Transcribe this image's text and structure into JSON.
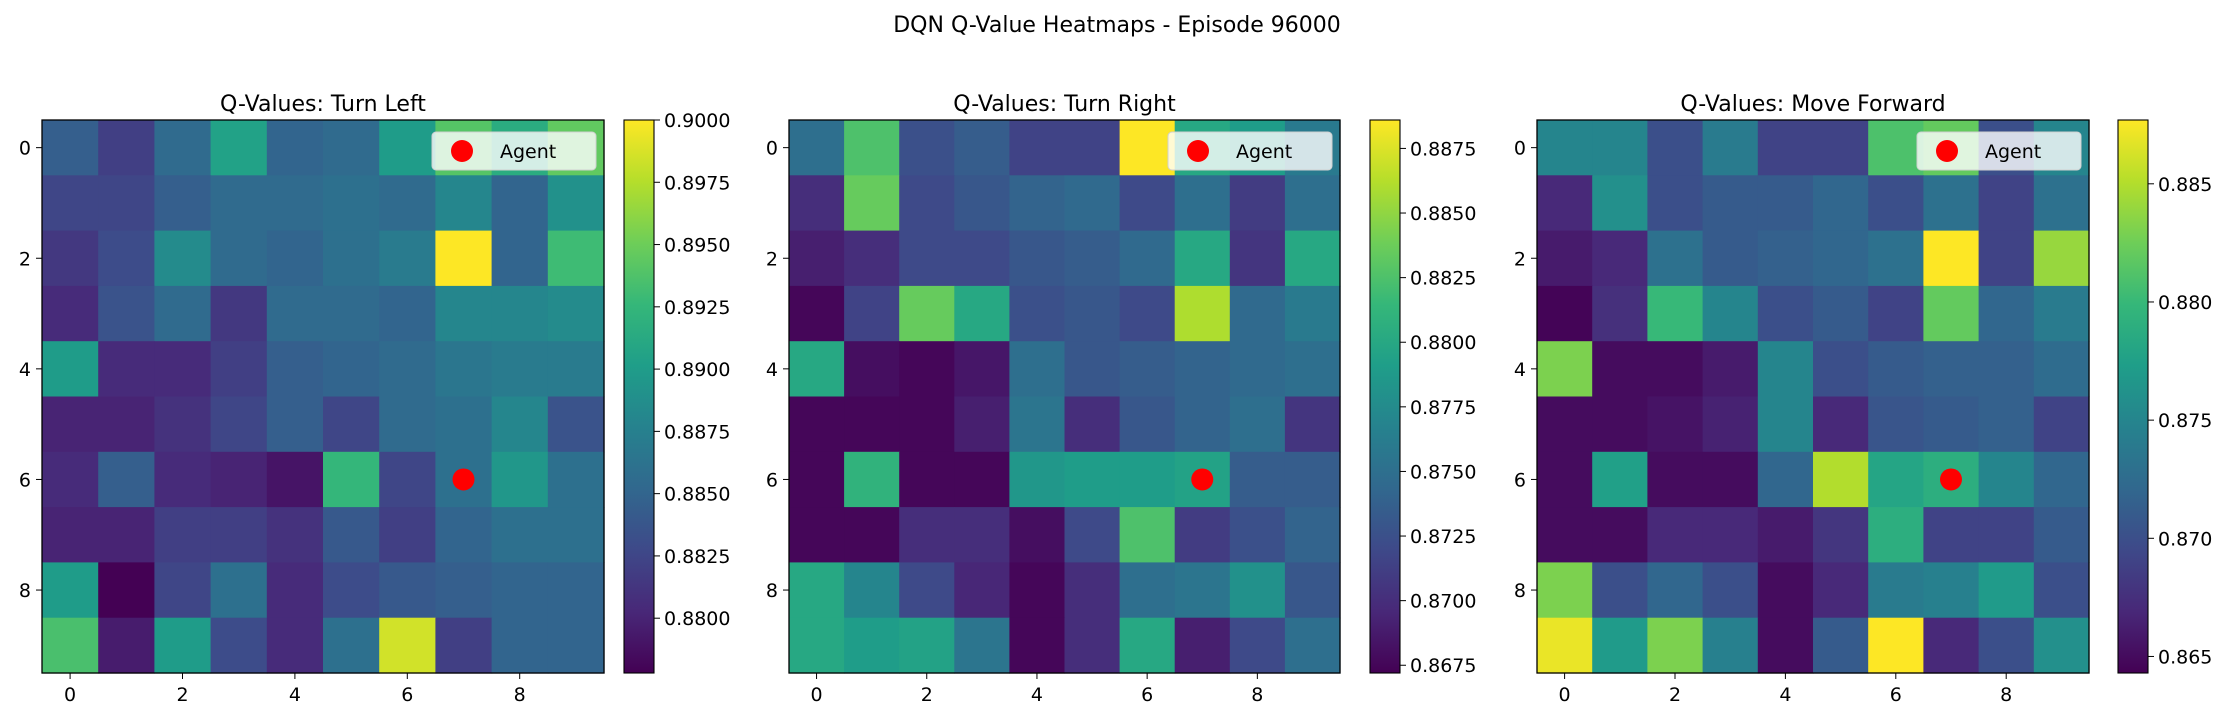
{
  "suptitle": "DQN Q-Value Heatmaps - Episode 96000",
  "legend_label": "Agent",
  "agent": {
    "x": 7,
    "y": 6,
    "color": "#ff0000"
  },
  "colormap": [
    "#440154",
    "#482878",
    "#3e4989",
    "#31688e",
    "#26828e",
    "#1f9e89",
    "#35b779",
    "#6ece58",
    "#b5de2b",
    "#fde725"
  ],
  "chart_data": [
    {
      "type": "heatmap",
      "title": "Q-Values: Turn Left",
      "xlabel": "",
      "ylabel": "",
      "xticks": [
        0,
        2,
        4,
        6,
        8
      ],
      "yticks": [
        0,
        2,
        4,
        6,
        8
      ],
      "vmin": 0.8778,
      "vmax": 0.9,
      "colorbar_ticks": [
        "0.8800",
        "0.8825",
        "0.8850",
        "0.8875",
        "0.8900",
        "0.8925",
        "0.8950",
        "0.8975",
        "0.9000"
      ],
      "values": [
        [
          0.8845,
          0.882,
          0.8855,
          0.8905,
          0.885,
          0.8855,
          0.89,
          0.894,
          0.8915,
          0.8945
        ],
        [
          0.8825,
          0.8825,
          0.8845,
          0.8855,
          0.8855,
          0.886,
          0.8855,
          0.888,
          0.885,
          0.889
        ],
        [
          0.8815,
          0.883,
          0.8885,
          0.8855,
          0.885,
          0.886,
          0.887,
          0.9,
          0.885,
          0.893
        ],
        [
          0.8805,
          0.8835,
          0.8855,
          0.8815,
          0.8855,
          0.8855,
          0.885,
          0.888,
          0.888,
          0.8885
        ],
        [
          0.89,
          0.8805,
          0.8805,
          0.882,
          0.8845,
          0.885,
          0.8855,
          0.8865,
          0.887,
          0.887
        ],
        [
          0.88,
          0.88,
          0.881,
          0.8825,
          0.8845,
          0.8825,
          0.8855,
          0.886,
          0.888,
          0.8835
        ],
        [
          0.8805,
          0.8845,
          0.8805,
          0.88,
          0.879,
          0.8925,
          0.8825,
          0.886,
          0.8895,
          0.886
        ],
        [
          0.88,
          0.88,
          0.882,
          0.882,
          0.881,
          0.884,
          0.882,
          0.885,
          0.886,
          0.886
        ],
        [
          0.89,
          0.8778,
          0.8825,
          0.886,
          0.8805,
          0.883,
          0.884,
          0.8845,
          0.885,
          0.885
        ],
        [
          0.8935,
          0.8795,
          0.89,
          0.883,
          0.8805,
          0.886,
          0.8985,
          0.882,
          0.885,
          0.885
        ]
      ]
    },
    {
      "type": "heatmap",
      "title": "Q-Values: Turn Right",
      "xlabel": "",
      "ylabel": "",
      "xticks": [
        0,
        2,
        4,
        6,
        8
      ],
      "yticks": [
        0,
        2,
        4,
        6,
        8
      ],
      "vmin": 0.8672,
      "vmax": 0.8886,
      "colorbar_ticks": [
        "0.8675",
        "0.8700",
        "0.8725",
        "0.8750",
        "0.8775",
        "0.8800",
        "0.8825",
        "0.8850",
        "0.8875"
      ],
      "values": [
        [
          0.875,
          0.8825,
          0.8725,
          0.8735,
          0.8715,
          0.8715,
          0.8886,
          0.88,
          0.879,
          0.876
        ],
        [
          0.87,
          0.8835,
          0.872,
          0.873,
          0.874,
          0.8745,
          0.872,
          0.875,
          0.871,
          0.875
        ],
        [
          0.869,
          0.87,
          0.872,
          0.872,
          0.873,
          0.8735,
          0.8745,
          0.88,
          0.8705,
          0.88
        ],
        [
          0.8675,
          0.8715,
          0.8835,
          0.88,
          0.8725,
          0.873,
          0.872,
          0.886,
          0.8745,
          0.876
        ],
        [
          0.88,
          0.868,
          0.8675,
          0.8685,
          0.875,
          0.873,
          0.8735,
          0.874,
          0.8745,
          0.875
        ],
        [
          0.8675,
          0.8675,
          0.8675,
          0.869,
          0.8755,
          0.87,
          0.873,
          0.874,
          0.875,
          0.8705
        ],
        [
          0.8675,
          0.881,
          0.8675,
          0.8675,
          0.8785,
          0.879,
          0.879,
          0.8795,
          0.8735,
          0.8735
        ],
        [
          0.8675,
          0.8675,
          0.87,
          0.87,
          0.868,
          0.872,
          0.8825,
          0.871,
          0.8725,
          0.874
        ],
        [
          0.88,
          0.877,
          0.872,
          0.8695,
          0.8675,
          0.87,
          0.875,
          0.8755,
          0.878,
          0.873
        ],
        [
          0.88,
          0.879,
          0.8795,
          0.8755,
          0.8675,
          0.87,
          0.88,
          0.869,
          0.872,
          0.875
        ]
      ]
    },
    {
      "type": "heatmap",
      "title": "Q-Values: Move Forward",
      "xlabel": "",
      "ylabel": "",
      "xticks": [
        0,
        2,
        4,
        6,
        8
      ],
      "yticks": [
        0,
        2,
        4,
        6,
        8
      ],
      "vmin": 0.8643,
      "vmax": 0.8877,
      "colorbar_ticks": [
        "0.865",
        "0.870",
        "0.875",
        "0.880",
        "0.885"
      ],
      "values": [
        [
          0.875,
          0.875,
          0.87,
          0.874,
          0.869,
          0.869,
          0.881,
          0.882,
          0.87,
          0.875
        ],
        [
          0.867,
          0.876,
          0.87,
          0.871,
          0.871,
          0.872,
          0.87,
          0.873,
          0.869,
          0.873
        ],
        [
          0.866,
          0.867,
          0.873,
          0.871,
          0.8715,
          0.872,
          0.873,
          0.8877,
          0.869,
          0.884
        ],
        [
          0.8645,
          0.8675,
          0.88,
          0.875,
          0.87,
          0.871,
          0.869,
          0.882,
          0.872,
          0.874
        ],
        [
          0.883,
          0.865,
          0.865,
          0.866,
          0.875,
          0.87,
          0.871,
          0.8715,
          0.8715,
          0.8725
        ],
        [
          0.865,
          0.865,
          0.8655,
          0.8665,
          0.875,
          0.867,
          0.8705,
          0.871,
          0.8715,
          0.869
        ],
        [
          0.865,
          0.8775,
          0.865,
          0.865,
          0.872,
          0.885,
          0.878,
          0.879,
          0.875,
          0.872
        ],
        [
          0.865,
          0.865,
          0.867,
          0.867,
          0.866,
          0.868,
          0.879,
          0.869,
          0.869,
          0.871
        ],
        [
          0.883,
          0.87,
          0.872,
          0.87,
          0.865,
          0.867,
          0.874,
          0.8745,
          0.877,
          0.87
        ],
        [
          0.887,
          0.877,
          0.883,
          0.8745,
          0.865,
          0.871,
          0.8877,
          0.867,
          0.87,
          0.876
        ]
      ]
    }
  ]
}
